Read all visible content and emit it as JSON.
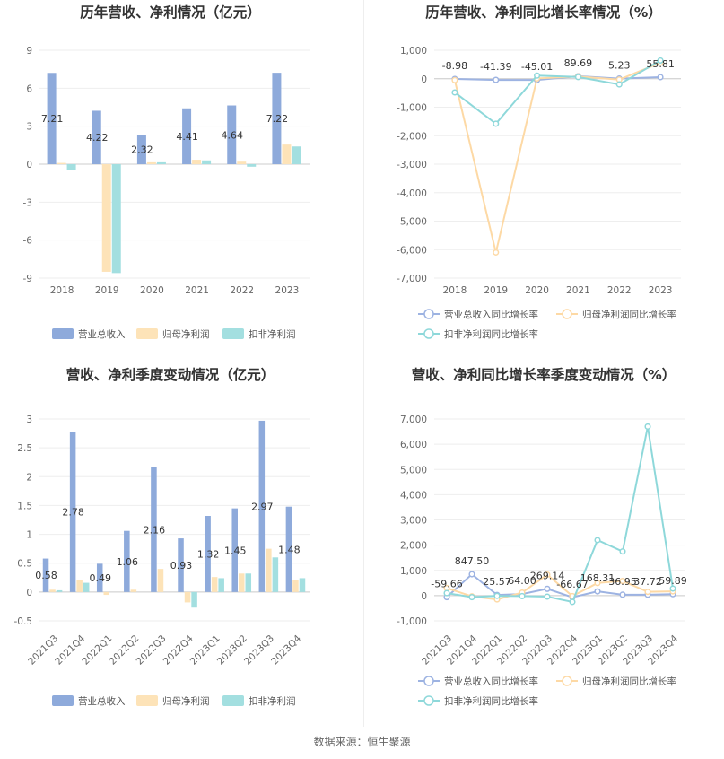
{
  "footer": {
    "source": "数据来源：恒生聚源"
  },
  "colors": {
    "revenue": "#8eaadb",
    "net_profit": "#fde3b8",
    "deducted_profit": "#a3dfe0",
    "line_revenue": "#9db3e2",
    "line_net_profit": "#fdd9a5",
    "line_deducted": "#8ed8da",
    "grid": "#eeeeee",
    "axis": "#cccccc"
  },
  "chart_data": [
    {
      "id": "annual-values",
      "type": "bar",
      "title": "历年营收、净利情况（亿元）",
      "categories": [
        "2018",
        "2019",
        "2020",
        "2021",
        "2022",
        "2023"
      ],
      "yticks": [
        "9",
        "6",
        "3",
        "0",
        "-3",
        "-6",
        "-9"
      ],
      "ylim": [
        -9,
        9
      ],
      "series": [
        {
          "name": "营业总收入",
          "values": [
            7.21,
            4.22,
            2.32,
            4.41,
            4.64,
            7.22
          ]
        },
        {
          "name": "归母净利润",
          "values": [
            0.1,
            -8.5,
            0.15,
            0.35,
            0.2,
            1.55
          ]
        },
        {
          "name": "扣非净利润",
          "values": [
            -0.45,
            -8.6,
            0.15,
            0.3,
            -0.2,
            1.4
          ]
        }
      ],
      "data_labels": [
        "7.21",
        "4.22",
        "2.32",
        "4.41",
        "4.64",
        "7.22"
      ]
    },
    {
      "id": "annual-growth",
      "type": "line",
      "title": "历年营收、净利同比增长率情况（%）",
      "categories": [
        "2018",
        "2019",
        "2020",
        "2021",
        "2022",
        "2023"
      ],
      "yticks": [
        "1,000",
        "0",
        "-1,000",
        "-2,000",
        "-3,000",
        "-4,000",
        "-5,000",
        "-6,000",
        "-7,000"
      ],
      "ylim": [
        -7000,
        1000
      ],
      "series": [
        {
          "name": "营业总收入同比增长率",
          "values": [
            -8.98,
            -41.39,
            -45.01,
            89.69,
            5.23,
            55.81
          ]
        },
        {
          "name": "归母净利润同比增长率",
          "values": [
            -50,
            -6100,
            10,
            80,
            -30,
            560
          ]
        },
        {
          "name": "扣非净利润同比增长率",
          "values": [
            -480,
            -1580,
            110,
            60,
            -200,
            640
          ]
        }
      ],
      "data_labels": [
        "-8.98",
        "-41.39",
        "-45.01",
        "89.69",
        "5.23",
        "55.81"
      ]
    },
    {
      "id": "quarterly-values",
      "type": "bar",
      "title": "营收、净利季度变动情况（亿元）",
      "categories": [
        "2021Q3",
        "2021Q4",
        "2022Q1",
        "2022Q2",
        "2022Q3",
        "2022Q4",
        "2023Q1",
        "2023Q2",
        "2023Q3",
        "2023Q4"
      ],
      "yticks": [
        "3",
        "2.5",
        "2",
        "1.5",
        "1",
        "0.5",
        "0",
        "-0.5"
      ],
      "ylim": [
        -0.5,
        3
      ],
      "series": [
        {
          "name": "营业总收入",
          "values": [
            0.58,
            2.78,
            0.49,
            1.06,
            2.16,
            0.93,
            1.32,
            1.45,
            2.97,
            1.48
          ]
        },
        {
          "name": "归母净利润",
          "values": [
            0.04,
            0.2,
            -0.05,
            0.04,
            0.4,
            -0.18,
            0.26,
            0.32,
            0.75,
            0.2
          ]
        },
        {
          "name": "扣非净利润",
          "values": [
            0.03,
            0.16,
            0.0,
            0.0,
            0.0,
            -0.27,
            0.24,
            0.32,
            0.6,
            0.24
          ]
        }
      ],
      "data_labels": [
        "0.58",
        "2.78",
        "0.49",
        "1.06",
        "2.16",
        "0.93",
        "1.32",
        "1.45",
        "2.97",
        "1.48"
      ]
    },
    {
      "id": "quarterly-growth",
      "type": "line",
      "title": "营收、净利同比增长率季度变动情况（%）",
      "categories": [
        "2021Q3",
        "2021Q4",
        "2022Q1",
        "2022Q2",
        "2022Q3",
        "2022Q4",
        "2023Q1",
        "2023Q2",
        "2023Q3",
        "2023Q4"
      ],
      "yticks": [
        "7,000",
        "6,000",
        "5,000",
        "4,000",
        "3,000",
        "2,000",
        "1,000",
        "0",
        "-1,000"
      ],
      "ylim": [
        -1000,
        7000
      ],
      "series": [
        {
          "name": "营业总收入同比增长率",
          "values": [
            -59.66,
            847.5,
            25.57,
            64.0,
            269.14,
            -66.67,
            168.31,
            36.95,
            37.72,
            59.89
          ]
        },
        {
          "name": "归母净利润同比增长率",
          "values": [
            300,
            -30,
            -150,
            120,
            830,
            -20,
            500,
            580,
            150,
            170
          ]
        },
        {
          "name": "扣非净利润同比增长率",
          "values": [
            100,
            -60,
            -10,
            -20,
            -40,
            -250,
            2200,
            1750,
            6700,
            280
          ]
        }
      ],
      "data_labels": [
        "-59.66",
        "847.50",
        "25.57",
        "64.00",
        "269.14",
        "-66.67",
        "168.31",
        "36.95",
        "37.72",
        "59.89"
      ]
    }
  ]
}
